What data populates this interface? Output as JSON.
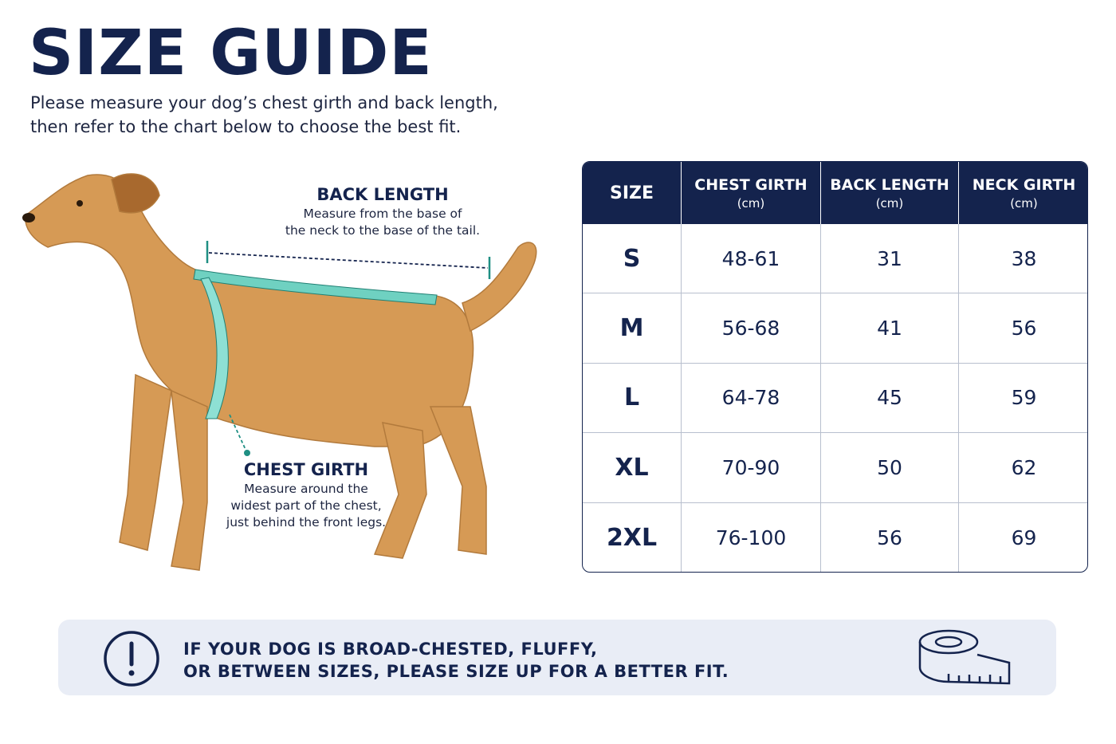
{
  "header": {
    "title": "SIZE GUIDE",
    "intro": [
      "Please measure your dog’s chest girth and back length,",
      "then refer to the chart below to choose the best fit."
    ]
  },
  "diagram": {
    "back_length": {
      "label": "BACK LENGTH",
      "description": [
        "Measure from the base of",
        "the neck to the base of the tail."
      ]
    },
    "chest_girth": {
      "label": "CHEST GIRTH",
      "description": [
        "Measure around the",
        "widest part of the chest,",
        "just behind the front legs."
      ]
    }
  },
  "table": {
    "headers": [
      {
        "title": "SIZE"
      },
      {
        "title": "CHEST GIRTH",
        "unit": "(cm)"
      },
      {
        "title": "BACK LENGTH",
        "unit": "(cm)"
      },
      {
        "title": "NECK GIRTH",
        "unit": "(cm)"
      }
    ],
    "rows": [
      [
        "S",
        "48-61",
        31,
        38
      ],
      [
        "M",
        "56-68",
        41,
        56
      ],
      [
        "L",
        "64-78",
        45,
        59
      ],
      [
        "XL",
        "70-90",
        50,
        62
      ],
      [
        "2XL",
        "76-100",
        56,
        69
      ]
    ]
  },
  "note": {
    "lines": [
      "IF YOUR DOG IS BROAD-CHESTED, FLUFFY,",
      "OR BETWEEN SIZES, PLEASE SIZE UP FOR A BETTER FIT."
    ]
  }
}
